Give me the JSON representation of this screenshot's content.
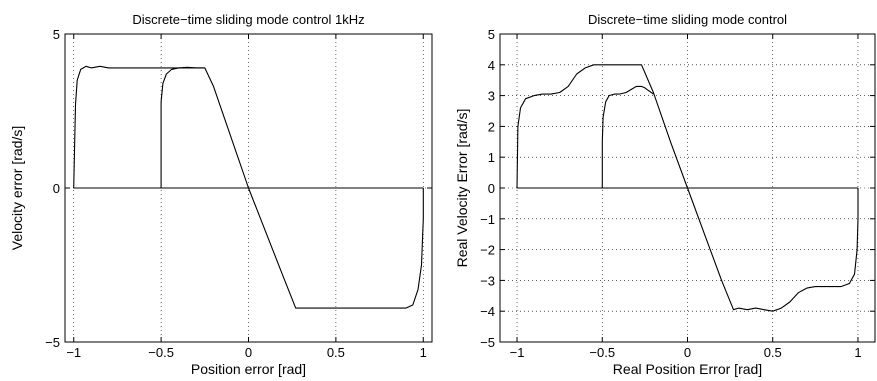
{
  "chart_data": [
    {
      "type": "line",
      "title": "Discrete−time sliding mode control 1kHz",
      "xlabel": "Position error [rad]",
      "ylabel": "Velocity error [rad/s]",
      "xlim": [
        -1.05,
        1.05
      ],
      "ylim": [
        -5,
        5
      ],
      "xticks": [
        -1,
        -0.5,
        0,
        0.5,
        1
      ],
      "xtick_labels": [
        "−1",
        "−0.5",
        "0",
        "0.5",
        "1"
      ],
      "yticks": [
        -5,
        0,
        5
      ],
      "ytick_labels": [
        "−5",
        "0",
        "5"
      ],
      "grid": true,
      "series": [
        {
          "x": [
            -1,
            -0.99,
            -0.98,
            -0.96,
            -0.93,
            -0.9,
            -0.85,
            -0.8,
            -0.7,
            -0.6,
            -0.5,
            -0.4,
            -0.3,
            -0.25,
            -0.2,
            0,
            0.2,
            0.27,
            0.3,
            0.5,
            0.6,
            0.7,
            0.8,
            0.9,
            0.94,
            0.97,
            0.99,
            1,
            1
          ],
          "y": [
            0,
            2.7,
            3.5,
            3.85,
            3.95,
            3.9,
            3.95,
            3.9,
            3.9,
            3.9,
            3.9,
            3.9,
            3.9,
            3.9,
            3.3,
            0,
            -2.9,
            -3.9,
            -3.9,
            -3.9,
            -3.9,
            -3.9,
            -3.9,
            -3.9,
            -3.8,
            -3.3,
            -2.5,
            -1,
            0
          ]
        },
        {
          "x": [
            -0.5,
            -0.5,
            -0.49,
            -0.47,
            -0.44,
            -0.4,
            -0.35,
            -0.3,
            -0.25
          ],
          "y": [
            0,
            2.8,
            3.4,
            3.7,
            3.85,
            3.9,
            3.92,
            3.9,
            3.9
          ]
        },
        {
          "x": [
            -1,
            1
          ],
          "y": [
            0,
            0
          ]
        }
      ]
    },
    {
      "type": "line",
      "title": "Discrete−time sliding mode control",
      "xlabel": "Real Position Error [rad]",
      "ylabel": "Real Velocity Error [rad/s]",
      "xlim": [
        -1.1,
        1.1
      ],
      "ylim": [
        -5,
        5
      ],
      "xticks": [
        -1,
        -0.5,
        0,
        0.5,
        1
      ],
      "xtick_labels": [
        "−1",
        "−0.5",
        "0",
        "0.5",
        "1"
      ],
      "yticks": [
        -5,
        -4,
        -3,
        -2,
        -1,
        0,
        1,
        2,
        3,
        4,
        5
      ],
      "ytick_labels": [
        "−5",
        "−4",
        "−3",
        "−2",
        "−1",
        "0",
        "1",
        "2",
        "3",
        "4",
        "5"
      ],
      "grid": true,
      "series": [
        {
          "x": [
            -1,
            -0.995,
            -0.98,
            -0.95,
            -0.9,
            -0.85,
            -0.8,
            -0.75,
            -0.7,
            -0.65,
            -0.6,
            -0.55,
            -0.5,
            -0.45,
            -0.4,
            -0.35,
            -0.3,
            -0.27,
            -0.2,
            -0.1,
            0,
            0.1,
            0.2,
            0.27,
            0.3,
            0.35,
            0.4,
            0.45,
            0.5,
            0.55,
            0.6,
            0.65,
            0.7,
            0.75,
            0.8,
            0.85,
            0.9,
            0.95,
            0.98,
            0.995,
            1,
            1
          ],
          "y": [
            0,
            2.0,
            2.6,
            2.9,
            3.0,
            3.05,
            3.05,
            3.1,
            3.3,
            3.7,
            3.9,
            4.0,
            4.0,
            4.0,
            4.0,
            4.0,
            4.0,
            4.0,
            3.1,
            1.5,
            0,
            -1.5,
            -3.0,
            -3.95,
            -3.9,
            -3.95,
            -3.9,
            -3.95,
            -4.0,
            -3.9,
            -3.7,
            -3.4,
            -3.25,
            -3.2,
            -3.2,
            -3.2,
            -3.2,
            -3.1,
            -2.8,
            -2.0,
            -1.0,
            0
          ]
        },
        {
          "x": [
            -0.5,
            -0.5,
            -0.495,
            -0.48,
            -0.46,
            -0.43,
            -0.4,
            -0.36,
            -0.33,
            -0.3,
            -0.27,
            -0.25,
            -0.2
          ],
          "y": [
            0,
            1.5,
            2.3,
            2.8,
            3.0,
            3.05,
            3.05,
            3.1,
            3.2,
            3.3,
            3.3,
            3.25,
            3.05
          ]
        },
        {
          "x": [
            -1,
            1
          ],
          "y": [
            0,
            0
          ]
        }
      ]
    }
  ]
}
